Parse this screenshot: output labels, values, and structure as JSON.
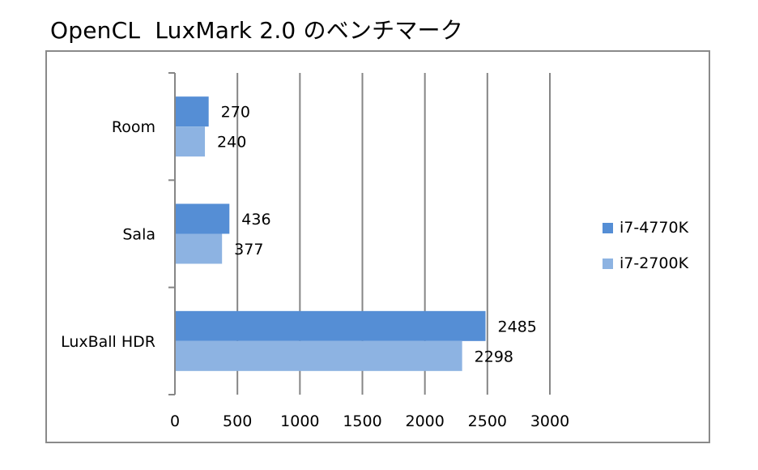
{
  "chart_data": {
    "type": "bar",
    "orientation": "horizontal",
    "title": "OpenCL  LuxMark 2.0 のベンチマーク",
    "categories": [
      "Room",
      "Sala",
      "LuxBall HDR"
    ],
    "series": [
      {
        "name": "i7-4770K",
        "values": [
          270,
          436,
          2485
        ],
        "color": "#558ed5"
      },
      {
        "name": "i7-2700K",
        "values": [
          240,
          377,
          2298
        ],
        "color": "#8db3e2"
      }
    ],
    "xlim": [
      0,
      3000
    ],
    "xticks": [
      0,
      500,
      1000,
      1500,
      2000,
      2500,
      3000
    ],
    "grid": "vertical",
    "legend": "right"
  }
}
